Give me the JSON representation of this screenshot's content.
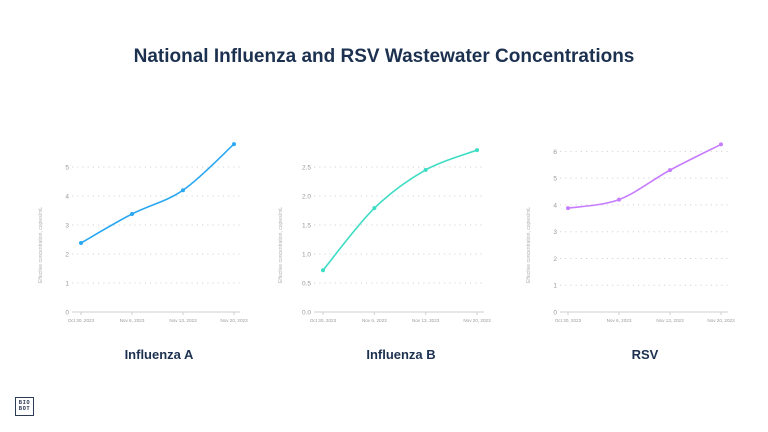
{
  "title": "National Influenza and RSV Wastewater Concentrations",
  "logo_text": "BIOBOT",
  "chart_data": [
    {
      "type": "line",
      "title": "Influenza A",
      "ylabel": "Effective concentration, copies/mL",
      "categories": [
        "Oct 30, 2023",
        "Nov 6, 2023",
        "Nov 13, 2023",
        "Nov 20, 2023"
      ],
      "values": [
        2.38,
        3.38,
        4.2,
        5.79
      ],
      "yticks": [
        "0",
        "1",
        "2",
        "3",
        "4",
        "5"
      ],
      "ytick_values": [
        0,
        1,
        2,
        3,
        4,
        5
      ],
      "ylim": [
        0,
        6
      ],
      "color": "#2aa8f2",
      "grid": true
    },
    {
      "type": "line",
      "title": "Influenza B",
      "ylabel": "Effective concentration, copies/mL",
      "categories": [
        "Oct 30, 2023",
        "Nov 6, 2023",
        "Nov 13, 2023",
        "Nov 20, 2023"
      ],
      "values": [
        0.72,
        1.79,
        2.45,
        2.79
      ],
      "yticks": [
        "0.0",
        "0.5",
        "1.0",
        "1.5",
        "2.0",
        "2.5"
      ],
      "ytick_values": [
        0,
        0.5,
        1,
        1.5,
        2,
        2.5
      ],
      "ylim": [
        0,
        3
      ],
      "color": "#3ddcc4",
      "grid": true
    },
    {
      "type": "line",
      "title": "RSV",
      "ylabel": "Effective concentration, copies/mL",
      "categories": [
        "Oct 30, 2023",
        "Nov 6, 2023",
        "Nov 13, 2023",
        "Nov 20, 2023"
      ],
      "values": [
        3.88,
        4.2,
        5.3,
        6.26
      ],
      "yticks": [
        "0",
        "1",
        "2",
        "3",
        "4",
        "5",
        "6"
      ],
      "ytick_values": [
        0,
        1,
        2,
        3,
        4,
        5,
        6
      ],
      "ylim": [
        0,
        6.5
      ],
      "color": "#c77dff",
      "grid": true
    }
  ]
}
